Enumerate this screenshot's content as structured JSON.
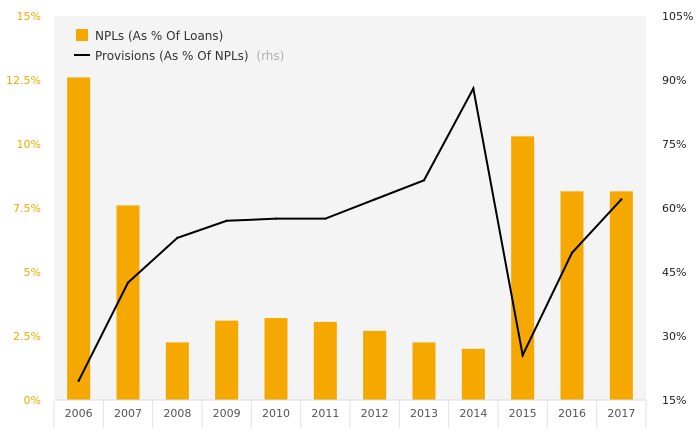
{
  "chart_data": {
    "type": "bar",
    "categories": [
      "2006",
      "2007",
      "2008",
      "2009",
      "2010",
      "2011",
      "2012",
      "2013",
      "2014",
      "2015",
      "2016",
      "2017"
    ],
    "series": [
      {
        "name": "NPLs (As % Of Loans)",
        "type": "bar",
        "axis": "left",
        "color": "#f5a800",
        "values": [
          12.6,
          7.6,
          2.25,
          3.1,
          3.2,
          3.05,
          2.7,
          2.25,
          2.0,
          10.3,
          8.15,
          8.15
        ]
      },
      {
        "name": "Provisions (As % Of NPLs)",
        "name_suffix": "(rhs)",
        "type": "line",
        "axis": "right",
        "color": "#000000",
        "values": [
          19.5,
          42.5,
          53,
          57,
          57.5,
          57.5,
          62,
          66.5,
          88,
          25.5,
          49.5,
          62
        ]
      }
    ],
    "y_left": {
      "range": [
        0,
        15
      ],
      "ticks": [
        0,
        2.5,
        5,
        7.5,
        10,
        12.5,
        15
      ],
      "tick_labels": [
        "0%",
        "2.5%",
        "5%",
        "7.5%",
        "10%",
        "12.5%",
        "15%"
      ],
      "color": "#f5a800"
    },
    "y_right": {
      "range": [
        15,
        105
      ],
      "ticks": [
        15,
        30,
        45,
        60,
        75,
        90,
        105
      ],
      "tick_labels": [
        "15%",
        "30%",
        "45%",
        "60%",
        "75%",
        "90%",
        "105%"
      ],
      "color": "#222222"
    },
    "grid": false,
    "legend_position": "top-left"
  }
}
